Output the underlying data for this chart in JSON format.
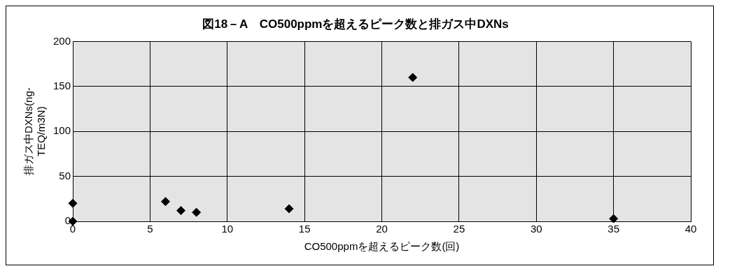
{
  "chart_data": {
    "type": "scatter",
    "title": "図18－A　CO500ppmを超えるピーク数と排ガス中DXNs",
    "xlabel": "CO500ppmを超えるピーク数(回)",
    "ylabel": "排ガス中DXNs(ng-TEQ/m3N)",
    "series": [
      {
        "color": "#000000",
        "x": [
          0,
          0,
          6,
          7,
          8,
          14,
          22,
          35
        ],
        "values": [
          0,
          20,
          22,
          12,
          10,
          14,
          160,
          3
        ]
      }
    ],
    "xlim": [
      0,
      40
    ],
    "xticks": [
      0,
      5,
      10,
      15,
      20,
      25,
      30,
      35,
      40
    ],
    "ylim": [
      0,
      200
    ],
    "yticks": [
      0,
      50,
      100,
      150,
      200
    ],
    "grid": true,
    "legend": false,
    "marker": "diamond"
  }
}
